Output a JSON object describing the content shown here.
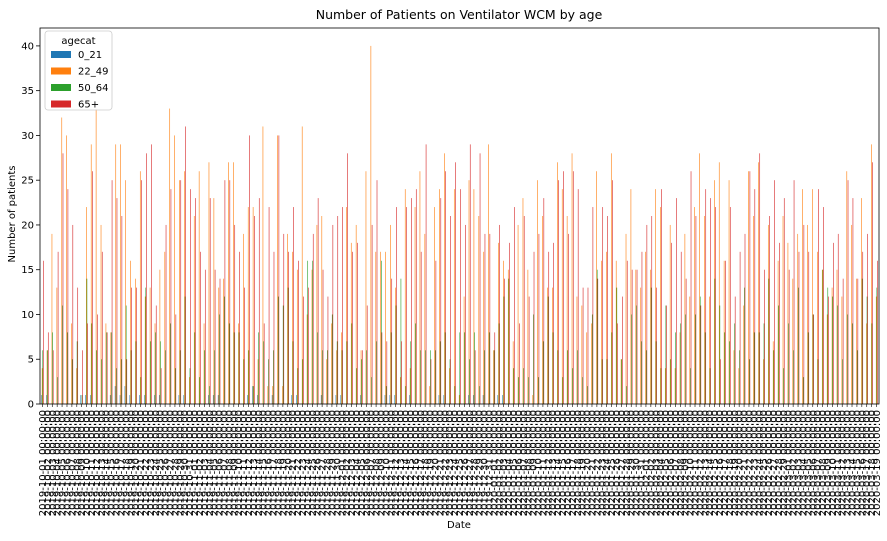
{
  "chart_data": {
    "type": "bar",
    "title": "Number of Patients on Ventilator WCM by age",
    "xlabel": "Date",
    "ylabel": "Number of patients",
    "ylim": [
      0,
      42
    ],
    "yticks": [
      0,
      5,
      10,
      15,
      20,
      25,
      30,
      35,
      40
    ],
    "grid": false,
    "legend": {
      "title": "agecat",
      "placement": "top-left"
    },
    "x_first_label": "2019-10-01 00:00:00",
    "x_last_label": "2020-03-19 00:00:00",
    "x_start_date": "2019-10-01",
    "x_count": 171,
    "series": [
      {
        "name": "0_21",
        "color": "#1f77b4",
        "values": [
          1,
          1,
          0,
          0,
          0,
          0,
          0,
          0,
          1,
          1,
          1,
          0,
          0,
          0,
          1,
          2,
          1,
          2,
          1,
          0,
          1,
          1,
          0,
          1,
          1,
          0,
          0,
          0,
          1,
          1,
          0,
          0,
          0,
          0,
          1,
          1,
          1,
          0,
          0,
          0,
          0,
          0,
          1,
          2,
          1,
          0,
          0,
          1,
          0,
          0,
          0,
          1,
          1,
          0,
          0,
          0,
          0,
          1,
          0,
          0,
          1,
          1,
          0,
          0,
          0,
          1,
          0,
          0,
          0,
          0,
          1,
          1,
          1,
          0,
          0,
          1,
          0,
          0,
          0,
          0,
          0,
          1,
          1,
          0,
          0,
          0,
          0,
          1,
          1,
          0,
          1,
          0,
          0,
          1,
          1,
          0,
          0,
          0,
          0,
          0,
          0,
          0,
          0,
          0,
          0,
          0,
          0,
          0,
          0,
          0,
          0,
          0,
          0,
          0,
          0,
          0,
          0,
          0,
          0,
          0,
          0,
          0,
          0,
          0,
          0,
          0,
          0,
          0,
          0,
          0,
          0,
          0,
          0,
          0,
          0,
          0,
          0,
          0,
          0,
          0,
          0,
          0,
          0,
          0,
          0,
          0,
          0,
          0,
          0,
          0,
          0,
          0,
          0,
          0,
          0,
          0,
          0,
          0,
          0,
          0,
          0,
          0,
          0,
          0,
          0,
          0,
          0,
          0,
          0,
          0,
          0
        ]
      },
      {
        "name": "22_49",
        "color": "#ff7f0e",
        "values": [
          4,
          6,
          19,
          13,
          32,
          30,
          9,
          4,
          0,
          22,
          29,
          33,
          20,
          9,
          8,
          29,
          29,
          25,
          16,
          14,
          26,
          12,
          13,
          9,
          15,
          17,
          33,
          30,
          25,
          26,
          3,
          21,
          26,
          9,
          27,
          23,
          13,
          14,
          27,
          27,
          9,
          19,
          22,
          22,
          5,
          31,
          2,
          2,
          30,
          2,
          19,
          17,
          15,
          31,
          10,
          15,
          20,
          21,
          5,
          9,
          6,
          8,
          22,
          18,
          20,
          6,
          26,
          40,
          17,
          17,
          17,
          20,
          13,
          3,
          24,
          4,
          22,
          26,
          19,
          2,
          22,
          24,
          28,
          4,
          24,
          1,
          12,
          25,
          24,
          21,
          17,
          29,
          6,
          18,
          16,
          15,
          7,
          20,
          23,
          15,
          1,
          25,
          21,
          13,
          13,
          27,
          24,
          21,
          28,
          12,
          11,
          8,
          9,
          26,
          16,
          17,
          28,
          16,
          5,
          19,
          24,
          15,
          13,
          17,
          15,
          24,
          22,
          4,
          20,
          4,
          8,
          19,
          12,
          22,
          28,
          21,
          12,
          25,
          27,
          16,
          25,
          6,
          4,
          11,
          26,
          21,
          27,
          5,
          20,
          7,
          16,
          21,
          18,
          14,
          19,
          24,
          20,
          24,
          17,
          15,
          10,
          13,
          15,
          12,
          26,
          20,
          14,
          23,
          9,
          29,
          12
        ]
      },
      {
        "name": "50_64",
        "color": "#2ca02c",
        "values": [
          6,
          6,
          8,
          3,
          11,
          8,
          5,
          7,
          1,
          14,
          9,
          6,
          5,
          8,
          8,
          4,
          5,
          11,
          6,
          7,
          3,
          13,
          7,
          8,
          7,
          6,
          9,
          4,
          6,
          12,
          4,
          8,
          3,
          6,
          2,
          6,
          10,
          12,
          9,
          8,
          8,
          5,
          6,
          2,
          8,
          7,
          5,
          6,
          12,
          11,
          13,
          7,
          4,
          5,
          16,
          16,
          8,
          6,
          6,
          10,
          7,
          6,
          7,
          9,
          4,
          5,
          6,
          3,
          7,
          16,
          2,
          8,
          11,
          14,
          2,
          7,
          9,
          6,
          6,
          6,
          6,
          7,
          8,
          5,
          2,
          8,
          8,
          5,
          8,
          2,
          6,
          8,
          6,
          9,
          12,
          14,
          4,
          3,
          4,
          3,
          10,
          3,
          7,
          12,
          8,
          6,
          3,
          6,
          4,
          6,
          3,
          2,
          10,
          15,
          5,
          5,
          8,
          13,
          5,
          2,
          10,
          11,
          7,
          6,
          13,
          7,
          4,
          11,
          5,
          8,
          9,
          10,
          4,
          10,
          12,
          8,
          4,
          14,
          11,
          8,
          7,
          9,
          6,
          13,
          5,
          8,
          8,
          9,
          14,
          6,
          11,
          4,
          9,
          6,
          13,
          3,
          8,
          10,
          5,
          15,
          13,
          12,
          11,
          5,
          10,
          9,
          6,
          14,
          12,
          9,
          13
        ]
      },
      {
        "name": "65+",
        "color": "#d62728",
        "values": [
          16,
          8,
          6,
          17,
          28,
          24,
          20,
          13,
          6,
          9,
          26,
          10,
          17,
          8,
          25,
          23,
          21,
          5,
          13,
          13,
          25,
          28,
          29,
          11,
          4,
          20,
          24,
          10,
          25,
          31,
          24,
          23,
          17,
          15,
          23,
          15,
          14,
          25,
          25,
          20,
          17,
          13,
          30,
          21,
          23,
          9,
          22,
          17,
          30,
          19,
          17,
          22,
          16,
          12,
          13,
          19,
          23,
          15,
          12,
          20,
          21,
          22,
          28,
          17,
          18,
          6,
          11,
          20,
          25,
          8,
          7,
          14,
          22,
          7,
          22,
          23,
          24,
          17,
          29,
          5,
          16,
          23,
          26,
          21,
          27,
          24,
          20,
          29,
          6,
          28,
          19,
          19,
          8,
          20,
          14,
          18,
          22,
          9,
          21,
          12,
          17,
          19,
          23,
          17,
          18,
          25,
          26,
          19,
          26,
          24,
          13,
          13,
          22,
          14,
          22,
          21,
          25,
          9,
          12,
          16,
          15,
          15,
          17,
          20,
          21,
          13,
          24,
          11,
          18,
          23,
          17,
          14,
          26,
          21,
          11,
          24,
          23,
          22,
          5,
          16,
          22,
          12,
          17,
          19,
          26,
          24,
          28,
          15,
          21,
          25,
          18,
          23,
          15,
          25,
          17,
          20,
          17,
          10,
          24,
          22,
          12,
          18,
          19,
          14,
          25,
          23,
          14,
          17,
          19,
          27,
          16
        ]
      }
    ]
  }
}
